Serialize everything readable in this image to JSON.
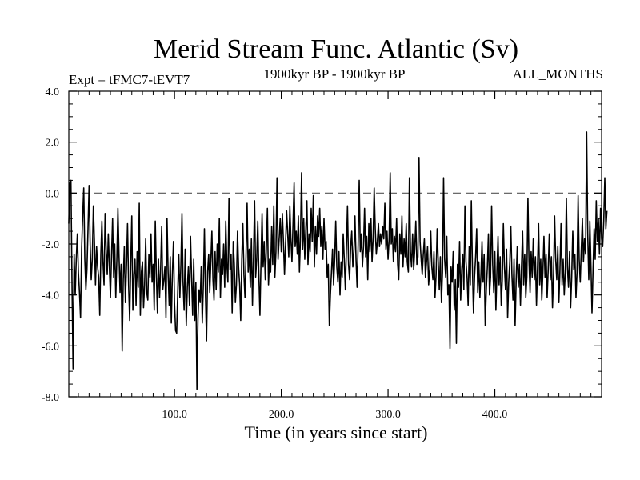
{
  "chart_data": {
    "type": "line",
    "title": "Merid Stream Func. Atlantic (Sv)",
    "subtitle_left": "Expt = tFMC7-tEVT7",
    "subtitle_center": "1900kyr BP - 1900kyr BP",
    "subtitle_right": "ALL_MONTHS",
    "xlabel": "Time (in years since start)",
    "ylabel": "",
    "xlim": [
      1,
      500
    ],
    "ylim": [
      -8.0,
      4.0
    ],
    "x_ticks": [
      100.0,
      200.0,
      300.0,
      400.0
    ],
    "x_tick_labels": [
      "100.0",
      "200.0",
      "300.0",
      "400.0"
    ],
    "y_ticks": [
      4.0,
      2.0,
      0.0,
      -2.0,
      -4.0,
      -6.0,
      -8.0
    ],
    "y_tick_labels": [
      "4.0",
      "2.0",
      "0.0",
      "-2.0",
      "-4.0",
      "-6.0",
      "-8.0"
    ],
    "reference_line": {
      "y": 0.0,
      "style": "dashed"
    },
    "series": [
      {
        "name": "Merid Stream Func. Atlantic",
        "x_start": 1,
        "x_step": 1,
        "values": [
          -1.2,
          0.4,
          0.5,
          -3.5,
          -6.9,
          -2.4,
          -4.0,
          -2.6,
          -1.6,
          -3.1,
          -3.9,
          -4.9,
          -2.2,
          -0.9,
          0.2,
          -2.6,
          -3.8,
          -3.0,
          -1.4,
          0.3,
          -2.0,
          -3.4,
          -2.6,
          -0.5,
          -1.9,
          -3.6,
          -2.1,
          -2.9,
          -3.3,
          -4.8,
          -2.4,
          -1.1,
          -2.7,
          -3.6,
          -0.8,
          -2.2,
          -3.2,
          -1.6,
          -2.9,
          -4.1,
          -2.5,
          -1.0,
          -3.3,
          -2.0,
          -4.1,
          -2.6,
          -0.6,
          -2.4,
          -3.9,
          -2.8,
          -6.2,
          -3.4,
          -2.1,
          -4.3,
          -2.9,
          -1.2,
          -3.6,
          -5.0,
          -2.8,
          -0.9,
          -4.6,
          -3.2,
          -2.6,
          -4.4,
          -2.3,
          -3.7,
          -0.4,
          -4.8,
          -3.1,
          -2.7,
          -4.5,
          -3.6,
          -1.8,
          -3.9,
          -4.2,
          -2.4,
          -3.3,
          -1.6,
          -3.5,
          -2.8,
          -4.6,
          -1.1,
          -3.2,
          -4.7,
          -2.6,
          -4.1,
          -3.0,
          -1.3,
          -3.8,
          -3.4,
          -2.9,
          -4.9,
          -1.0,
          -3.1,
          -4.4,
          -2.5,
          -5.1,
          -3.2,
          -1.9,
          -4.3,
          -5.4,
          -5.5,
          -3.9,
          -2.4,
          -4.1,
          -2.8,
          -0.8,
          -3.5,
          -4.6,
          -2.2,
          -5.2,
          -3.7,
          -2.9,
          -4.4,
          -1.7,
          -3.3,
          -4.8,
          -2.6,
          -5.0,
          -3.5,
          -7.7,
          -4.9,
          -3.8,
          -4.3,
          -2.9,
          -5.1,
          -3.6,
          -1.4,
          -4.0,
          -5.8,
          -3.1,
          -2.4,
          -3.9,
          -2.7,
          -1.5,
          -3.4,
          -4.2,
          -2.3,
          -3.8,
          -2.0,
          -3.1,
          -1.0,
          -4.1,
          -2.6,
          -3.2,
          -2.0,
          -3.7,
          -1.1,
          -2.8,
          -3.5,
          -0.2,
          -3.0,
          -2.4,
          -4.7,
          -1.9,
          -2.8,
          -4.3,
          -3.6,
          -1.5,
          -2.9,
          -3.6,
          -5.0,
          -2.6,
          -1.2,
          -3.2,
          -4.1,
          -2.4,
          -0.4,
          -3.1,
          -2.2,
          -3.7,
          -1.8,
          -4.4,
          -2.5,
          -0.3,
          -3.3,
          -2.6,
          -1.1,
          -3.2,
          -4.8,
          -2.7,
          -0.8,
          -2.9,
          -1.9,
          -3.4,
          -2.2,
          -0.6,
          -3.6,
          -2.6,
          -3.1,
          -1.3,
          -2.8,
          -0.5,
          -3.3,
          -2.3,
          0.6,
          -2.6,
          -1.8,
          -1.0,
          -2.3,
          -0.8,
          -1.9,
          -3.2,
          -2.0,
          -0.7,
          -1.6,
          -2.5,
          -0.5,
          -1.8,
          -2.7,
          -1.2,
          0.4,
          -2.1,
          -1.5,
          -2.4,
          -0.9,
          -3.1,
          -1.7,
          0.8,
          -2.2,
          -1.0,
          -2.6,
          -1.4,
          -0.3,
          -2.8,
          -1.6,
          -2.3,
          -0.6,
          -1.9,
          -0.1,
          -2.9,
          -1.3,
          -2.4,
          -0.9,
          -1.7,
          -0.6,
          -2.1,
          -1.3,
          -2.6,
          -1.0,
          -2.2,
          -1.9,
          -3.3,
          -2.8,
          -5.2,
          -4.0,
          -3.1,
          -2.2,
          -3.6,
          -2.6,
          -1.1,
          -2.9,
          -3.5,
          -2.3,
          -4.0,
          -2.7,
          -3.3,
          -1.6,
          -2.6,
          -3.8,
          -2.2,
          -0.5,
          -2.8,
          -3.4,
          -2.1,
          -1.5,
          -2.9,
          -2.3,
          -0.9,
          -2.6,
          -3.7,
          -2.0,
          0.5,
          -2.3,
          -1.6,
          -2.9,
          -2.1,
          -0.6,
          -2.5,
          -1.7,
          -3.4,
          -1.2,
          -2.3,
          -1.0,
          -2.7,
          -1.8,
          0.2,
          -1.4,
          -2.4,
          -1.9,
          -1.2,
          -2.1,
          -1.6,
          -2.0,
          -1.3,
          -1.8,
          -0.4,
          -2.2,
          -1.5,
          -2.6,
          -1.8,
          0.8,
          -2.0,
          -1.4,
          -2.7,
          -1.7,
          -2.3,
          -1.0,
          -2.8,
          -3.4,
          -1.6,
          -2.4,
          -0.9,
          -2.9,
          -1.8,
          -2.5,
          -1.2,
          -2.7,
          -3.1,
          0.6,
          -2.3,
          -2.9,
          -1.6,
          -3.0,
          -2.2,
          -1.1,
          -2.8,
          -2.5,
          1.4,
          -1.9,
          -2.6,
          -3.2,
          -2.4,
          -1.8,
          -3.3,
          -2.7,
          -2.1,
          -3.6,
          -3.0,
          -1.5,
          -2.9,
          -3.4,
          -2.3,
          -4.1,
          -3.2,
          -1.4,
          -2.7,
          -3.8,
          -2.5,
          -4.3,
          -3.1,
          0.6,
          -2.6,
          -3.3,
          -1.7,
          -4.0,
          -3.6,
          -6.1,
          -2.9,
          -3.5,
          -2.3,
          -4.6,
          -3.4,
          -5.9,
          -2.8,
          -3.7,
          -1.9,
          -4.2,
          -3.0,
          -2.4,
          -3.8,
          -0.5,
          -2.7,
          -3.3,
          -4.4,
          -2.1,
          -3.6,
          -0.3,
          -2.9,
          -4.7,
          -3.3,
          -2.5,
          -1.4,
          -3.9,
          -2.7,
          -4.1,
          -3.2,
          -1.9,
          -3.5,
          -2.4,
          -5.2,
          -3.8,
          -2.9,
          -1.6,
          -4.0,
          -3.3,
          -0.5,
          -2.8,
          -3.9,
          -2.3,
          -4.6,
          -3.0,
          -1.7,
          -3.6,
          -2.5,
          -4.4,
          -3.4,
          -1.2,
          -2.9,
          -3.8,
          -2.2,
          -4.9,
          -3.5,
          -2.7,
          -1.3,
          -3.2,
          -4.2,
          -2.6,
          -5.2,
          -3.4,
          -2.1,
          -3.7,
          -2.8,
          -4.4,
          -2.9,
          -1.5,
          -3.6,
          -2.4,
          -4.1,
          -3.3,
          -0.2,
          -2.7,
          -3.9,
          -2.3,
          -3.3,
          -1.8,
          -3.4,
          -2.5,
          -4.4,
          -2.9,
          -1.2,
          -3.6,
          -2.6,
          -4.2,
          -3.1,
          -1.7,
          -3.3,
          -2.4,
          -4.1,
          -3.0,
          -1.6,
          -3.4,
          -2.5,
          -4.5,
          -3.2,
          -0.9,
          -2.6,
          -3.4,
          -2.1,
          -4.3,
          -3.0,
          -1.2,
          -3.6,
          -2.6,
          -4.0,
          -3.1,
          -0.2,
          -2.9,
          -3.7,
          -2.3,
          -4.5,
          -3.3,
          -1.5,
          -3.0,
          -2.4,
          -4.1,
          -3.1,
          -0.1,
          -2.6,
          -3.5,
          -2.2,
          -1.0,
          -2.7,
          -1.8,
          -2.4,
          2.4,
          -1.6,
          -3.4,
          -1.1,
          -2.8,
          -4.7,
          -3.0,
          -1.4,
          -2.6,
          -0.3,
          -1.9,
          -1.0,
          -2.4,
          -0.6,
          -1.8,
          -2.1,
          -1.1,
          0.6,
          -1.4,
          -0.7
        ]
      }
    ]
  }
}
